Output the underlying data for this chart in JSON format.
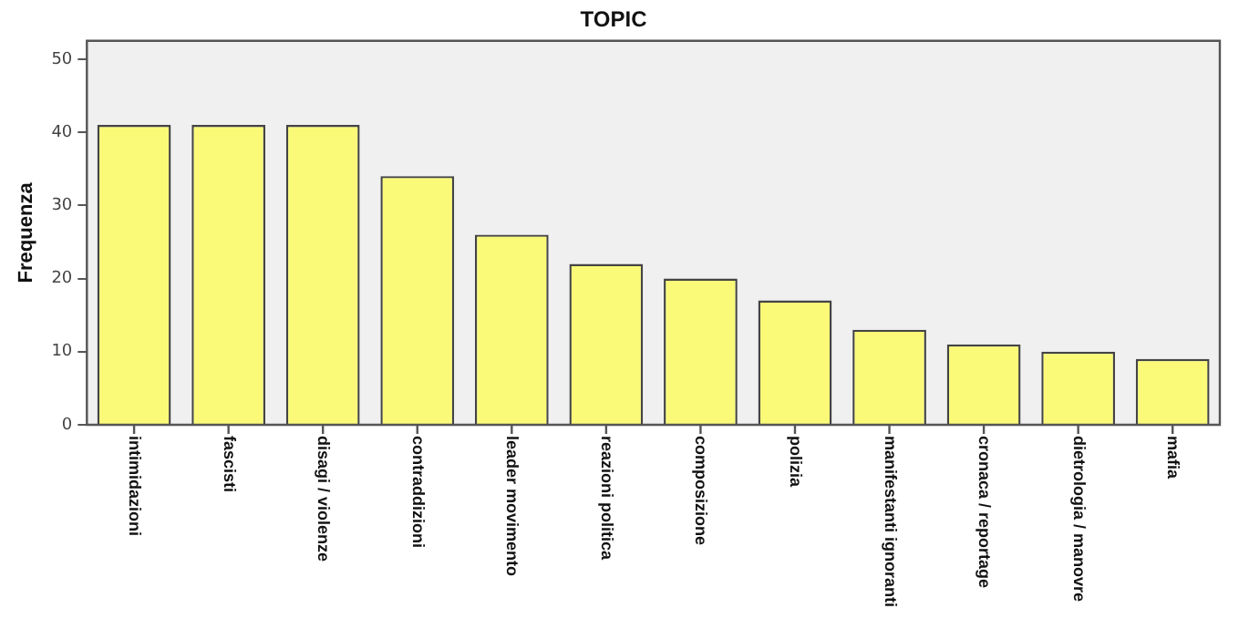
{
  "chart_data": {
    "type": "bar",
    "title": "TOPIC",
    "ylabel": "Frequenza",
    "categories": [
      "intimidazioni",
      "fascisti",
      "disagi / violenze",
      "contraddizioni",
      "leader movimento",
      "reazioni politica",
      "composizione",
      "polizia",
      "manifestanti ignoranti",
      "cronaca / reportage",
      "dietrologia / manovre",
      "mafia"
    ],
    "values": [
      41,
      41,
      41,
      34,
      26,
      22,
      20,
      17,
      13,
      11,
      10,
      9
    ],
    "color": "#fafa78",
    "ylim": [
      0,
      52.5
    ],
    "yticks": [
      0,
      10,
      20,
      30,
      40,
      50
    ],
    "grid": false,
    "legend": false
  }
}
